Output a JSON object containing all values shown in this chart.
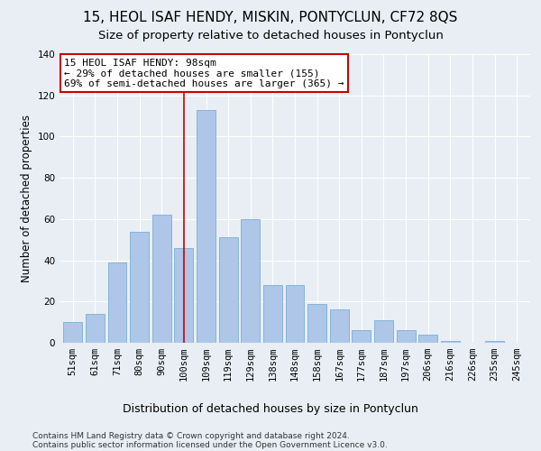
{
  "title": "15, HEOL ISAF HENDY, MISKIN, PONTYCLUN, CF72 8QS",
  "subtitle": "Size of property relative to detached houses in Pontyclun",
  "xlabel": "Distribution of detached houses by size in Pontyclun",
  "ylabel": "Number of detached properties",
  "categories": [
    "51sqm",
    "61sqm",
    "71sqm",
    "80sqm",
    "90sqm",
    "100sqm",
    "109sqm",
    "119sqm",
    "129sqm",
    "138sqm",
    "148sqm",
    "158sqm",
    "167sqm",
    "177sqm",
    "187sqm",
    "197sqm",
    "206sqm",
    "216sqm",
    "226sqm",
    "235sqm",
    "245sqm"
  ],
  "values": [
    10,
    14,
    39,
    54,
    62,
    46,
    113,
    51,
    60,
    28,
    28,
    19,
    16,
    6,
    11,
    6,
    4,
    1,
    0,
    1,
    0
  ],
  "bar_color": "#aec6e8",
  "bar_edge_color": "#7aafd4",
  "background_color": "#e8eef4",
  "grid_color": "#ffffff",
  "vline_x_index": 5,
  "vline_color": "#cc0000",
  "annotation_line1": "15 HEOL ISAF HENDY: 98sqm",
  "annotation_line2": "← 29% of detached houses are smaller (155)",
  "annotation_line3": "69% of semi-detached houses are larger (365) →",
  "annotation_box_color": "#ffffff",
  "annotation_box_edge": "#cc0000",
  "ylim": [
    0,
    140
  ],
  "yticks": [
    0,
    20,
    40,
    60,
    80,
    100,
    120,
    140
  ],
  "footer1": "Contains HM Land Registry data © Crown copyright and database right 2024.",
  "footer2": "Contains public sector information licensed under the Open Government Licence v3.0.",
  "title_fontsize": 11,
  "subtitle_fontsize": 9.5,
  "xlabel_fontsize": 9,
  "ylabel_fontsize": 8.5,
  "tick_fontsize": 7.5,
  "annotation_fontsize": 8,
  "footer_fontsize": 6.5
}
